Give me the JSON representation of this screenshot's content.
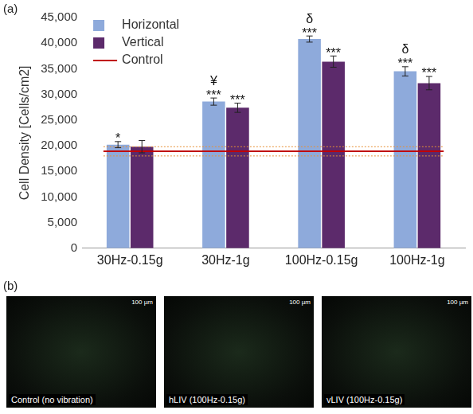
{
  "panel_labels": [
    "(a)",
    "(b)"
  ],
  "chart_data": {
    "type": "bar",
    "y_label": "Cell Density [Cells/cm2]",
    "categories": [
      "30Hz-0.15g",
      "30Hz-1g",
      "100Hz-0.15g",
      "100Hz-1g"
    ],
    "series": [
      {
        "name": "Horizontal",
        "color": "#8eaadb",
        "values": [
          20200,
          28600,
          40800,
          34500
        ],
        "errors": [
          600,
          700,
          600,
          900
        ],
        "annotations": [
          [
            "*"
          ],
          [
            "¥",
            "***"
          ],
          [
            "δ",
            "***"
          ],
          [
            "δ",
            "***"
          ]
        ]
      },
      {
        "name": "Vertical",
        "color": "#5c2a6b",
        "values": [
          19800,
          27400,
          36400,
          32200
        ],
        "errors": [
          1200,
          900,
          1100,
          1300
        ],
        "annotations": [
          [],
          [
            "***"
          ],
          [
            "***"
          ],
          [
            "***"
          ]
        ]
      }
    ],
    "reference_line": {
      "name": "Control",
      "color": "#c00000",
      "value": 18900,
      "error": 900
    },
    "ylim": [
      0,
      45000
    ],
    "yticks": [
      0,
      {
        "value": 5000,
        "label": "5,000"
      },
      {
        "value": 10000,
        "label": "10,000"
      },
      {
        "value": 15000,
        "label": "15,000"
      },
      {
        "value": 20000,
        "label": "20,000"
      },
      {
        "value": 25000,
        "label": "25,000"
      },
      {
        "value": 30000,
        "label": "30,000"
      },
      {
        "value": 35000,
        "label": "35,000"
      },
      {
        "value": 40000,
        "label": "40,000"
      },
      {
        "value": 45000,
        "label": "45,000"
      }
    ],
    "grid": false,
    "legend": "upper left"
  },
  "images": [
    {
      "caption": "Control (no vibration)",
      "scale_bar": "100 µm"
    },
    {
      "caption": "hLIV (100Hz-0.15g)",
      "scale_bar": "100 µm"
    },
    {
      "caption": "vLIV (100Hz-0.15g)",
      "scale_bar": "100 µm"
    }
  ]
}
